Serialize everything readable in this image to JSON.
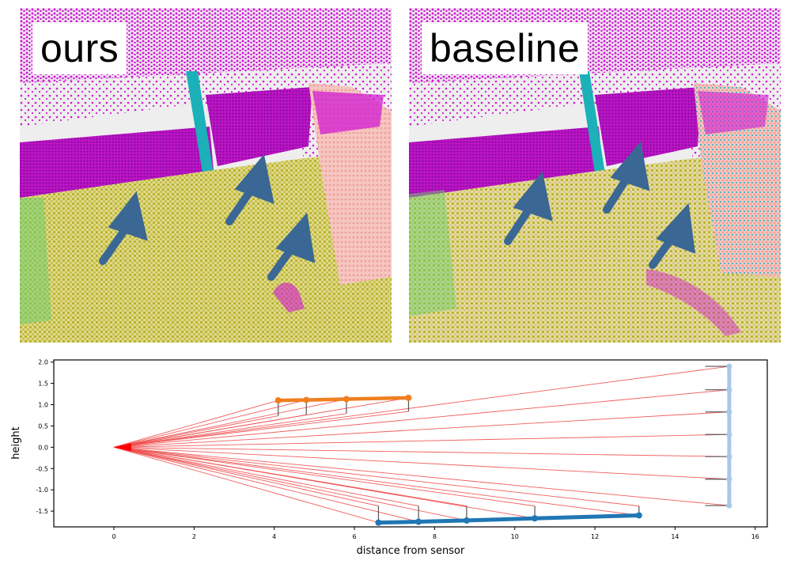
{
  "panels": {
    "ours": {
      "label": "ours"
    },
    "baseline": {
      "label": "baseline"
    }
  },
  "colors": {
    "wall": "#d21bd2",
    "floor": "#bcb62f",
    "background": "#eeeeee",
    "door": "#f2a9a3",
    "pole": "#1cb0b8",
    "arrow": "#3a6794",
    "ray": "#f04b4b",
    "sensor": "#ff0000",
    "upper_surface": "#ef7f1f",
    "lower_surface": "#1f77b4",
    "far_wall": "#a9c8e8",
    "error_bar": "#555555"
  },
  "chart_data": {
    "type": "line",
    "xlabel": "distance from sensor",
    "ylabel": "height",
    "xlim": [
      -1.5,
      16.3
    ],
    "ylim": [
      -1.87,
      2.05
    ],
    "xticks": [
      0,
      2,
      4,
      6,
      8,
      10,
      12,
      14,
      16
    ],
    "yticks": [
      2.0,
      1.5,
      1.0,
      0.5,
      0.0,
      -0.5,
      -1.0,
      -1.5
    ],
    "xtick_labels": [
      "0",
      "2",
      "4",
      "6",
      "8",
      "10",
      "12",
      "14",
      "16"
    ],
    "ytick_labels": [
      "2.0",
      "1.5",
      "1.0",
      "0.5",
      "0.0",
      "-0.5",
      "-1.0",
      "-1.5"
    ],
    "sensor": [
      0,
      0
    ],
    "series": [
      {
        "x": [
          4.1,
          4.8,
          5.8,
          7.35
        ],
        "y": [
          1.1,
          1.11,
          1.13,
          1.16
        ],
        "dots": [
          [
            4.1,
            1.1
          ],
          [
            4.8,
            1.11
          ],
          [
            5.8,
            1.13
          ],
          [
            7.35,
            1.16
          ]
        ],
        "error_tips": [
          [
            4.1,
            0.74
          ],
          [
            4.8,
            0.76
          ],
          [
            5.8,
            0.79
          ],
          [
            7.35,
            0.84
          ]
        ]
      },
      {
        "x": [
          6.6,
          7.6,
          8.8,
          10.5,
          13.1
        ],
        "y": [
          -1.77,
          -1.75,
          -1.72,
          -1.67,
          -1.6
        ],
        "dots": [
          [
            6.6,
            -1.77
          ],
          [
            7.6,
            -1.75
          ],
          [
            8.8,
            -1.72
          ],
          [
            10.5,
            -1.67
          ],
          [
            13.1,
            -1.6
          ]
        ],
        "error_tips": [
          [
            6.6,
            -1.38
          ],
          [
            7.6,
            -1.38
          ],
          [
            8.8,
            -1.38
          ],
          [
            10.5,
            -1.38
          ],
          [
            13.1,
            -1.38
          ]
        ]
      },
      {
        "x": [
          15.35,
          15.35
        ],
        "y": [
          1.9,
          -1.37
        ],
        "dots": [
          [
            15.35,
            1.9
          ],
          [
            15.35,
            1.35
          ],
          [
            15.35,
            0.83
          ],
          [
            15.35,
            0.3
          ],
          [
            15.35,
            -0.22
          ],
          [
            15.35,
            -0.75
          ],
          [
            15.35,
            -1.37
          ]
        ],
        "error_tips": [
          [
            14.75,
            1.9
          ],
          [
            14.75,
            1.35
          ],
          [
            14.75,
            0.83
          ],
          [
            14.75,
            0.3
          ],
          [
            14.75,
            -0.22
          ],
          [
            14.75,
            -0.75
          ],
          [
            14.75,
            -1.37
          ]
        ]
      }
    ],
    "rays": {
      "origin": [
        0,
        0
      ],
      "targets": [
        [
          15.35,
          1.9
        ],
        [
          15.35,
          1.35
        ],
        [
          15.35,
          0.83
        ],
        [
          15.35,
          0.3
        ],
        [
          15.35,
          -0.22
        ],
        [
          15.35,
          -0.75
        ],
        [
          15.35,
          -1.37
        ],
        [
          4.1,
          1.1
        ],
        [
          4.8,
          1.11
        ],
        [
          5.8,
          1.13
        ],
        [
          7.35,
          1.16
        ],
        [
          4.1,
          0.74
        ],
        [
          4.8,
          0.76
        ],
        [
          5.8,
          0.79
        ],
        [
          7.35,
          0.84
        ],
        [
          6.6,
          -1.77
        ],
        [
          7.6,
          -1.75
        ],
        [
          8.8,
          -1.72
        ],
        [
          10.5,
          -1.67
        ],
        [
          13.1,
          -1.6
        ],
        [
          6.6,
          -1.38
        ],
        [
          7.6,
          -1.38
        ],
        [
          8.8,
          -1.38
        ],
        [
          10.5,
          -1.38
        ],
        [
          13.1,
          -1.38
        ]
      ]
    },
    "grid": false,
    "legend": "none"
  }
}
